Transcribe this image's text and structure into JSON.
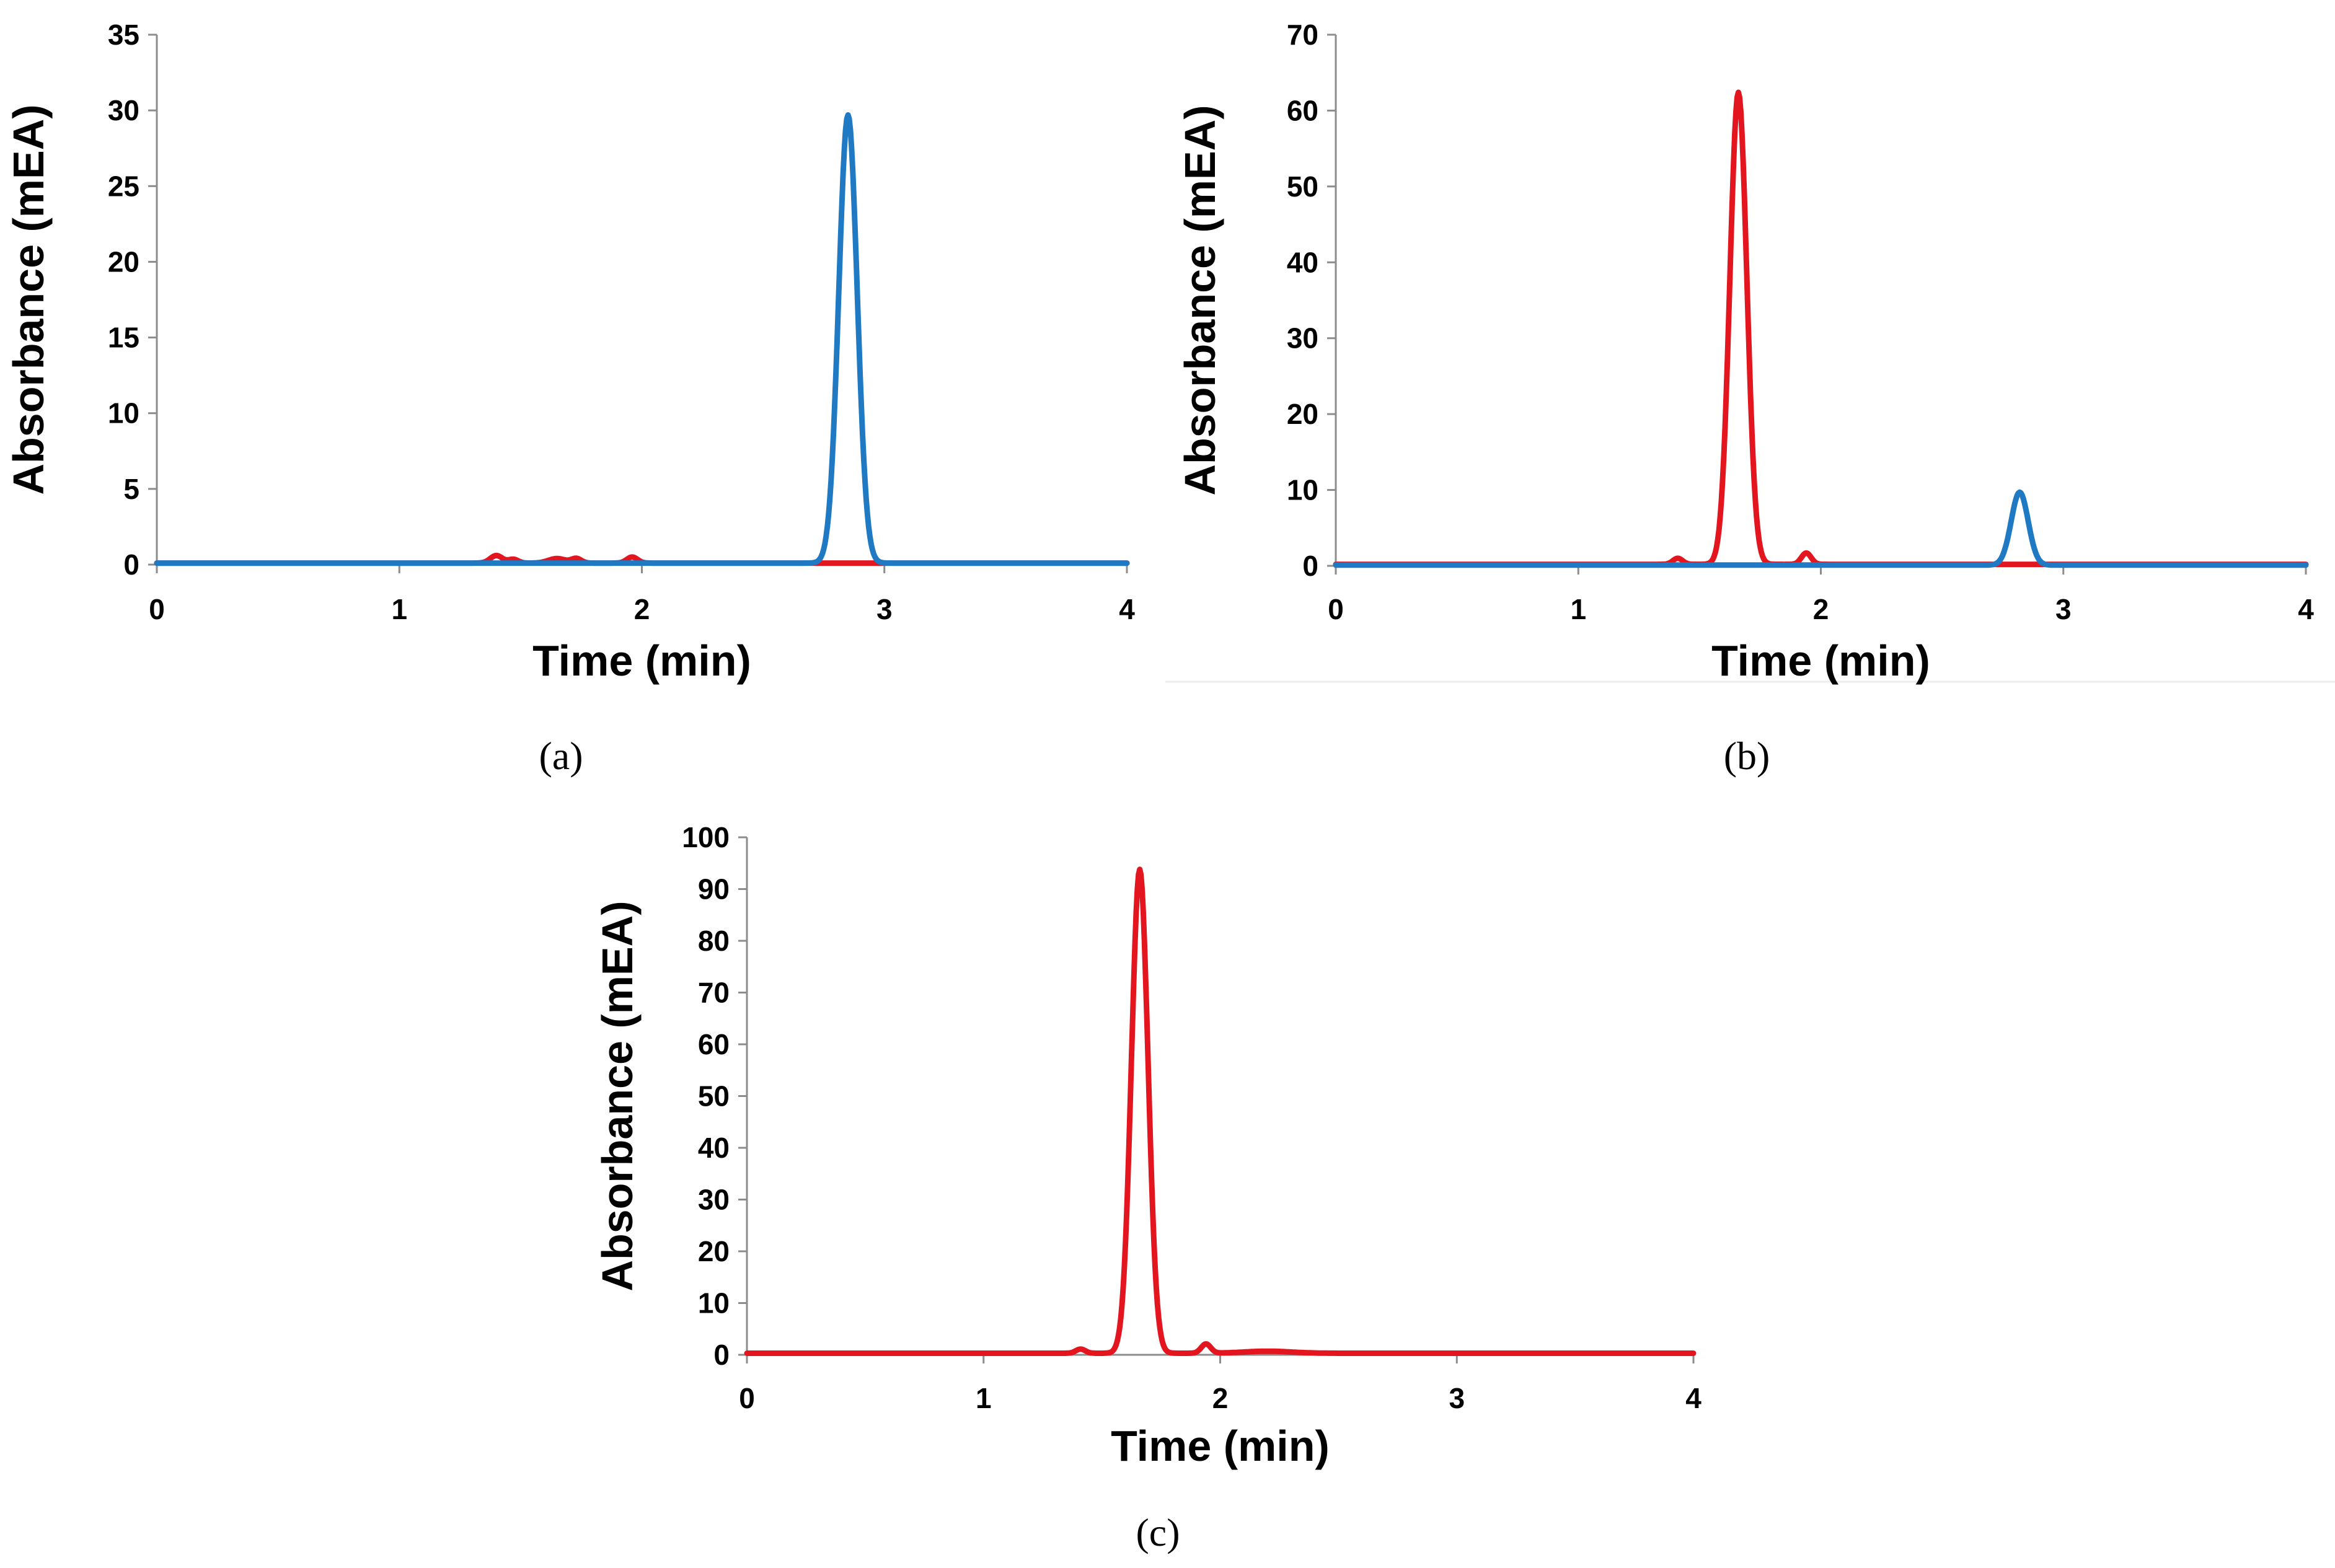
{
  "chart_data": [
    {
      "id": "a",
      "type": "line",
      "caption": "(a)",
      "xlabel": "Time (min)",
      "ylabel": "Absorbance (mEA)",
      "xlim": [
        0,
        4
      ],
      "ylim": [
        0,
        35
      ],
      "xticks": [
        "0",
        "1",
        "2",
        "3",
        "4"
      ],
      "yticks": [
        "0",
        "5",
        "10",
        "15",
        "20",
        "25",
        "30",
        "35"
      ],
      "series": [
        {
          "name": "red trace",
          "color": "#e3161f",
          "baseline": 0.1,
          "peaks": [
            {
              "t": 1.4,
              "h": 0.5,
              "w": 0.025
            },
            {
              "t": 1.47,
              "h": 0.25,
              "w": 0.02
            },
            {
              "t": 1.65,
              "h": 0.3,
              "w": 0.035
            },
            {
              "t": 1.73,
              "h": 0.3,
              "w": 0.02
            },
            {
              "t": 1.96,
              "h": 0.4,
              "w": 0.022
            }
          ]
        },
        {
          "name": "blue trace",
          "color": "#1f7ac3",
          "baseline": 0.1,
          "peaks": [
            {
              "t": 2.85,
              "h": 29.6,
              "w": 0.038
            }
          ]
        }
      ]
    },
    {
      "id": "b",
      "type": "line",
      "caption": "(b)",
      "xlabel": "Time (min)",
      "ylabel": "Absorbance (mEA)",
      "xlim": [
        0,
        4
      ],
      "ylim": [
        0,
        70
      ],
      "xticks": [
        "0",
        "1",
        "2",
        "3",
        "4"
      ],
      "yticks": [
        "0",
        "10",
        "20",
        "30",
        "40",
        "50",
        "60",
        "70"
      ],
      "series": [
        {
          "name": "red trace",
          "color": "#e3161f",
          "baseline": 0.2,
          "peaks": [
            {
              "t": 1.41,
              "h": 0.8,
              "w": 0.02
            },
            {
              "t": 1.66,
              "h": 62.2,
              "w": 0.035
            },
            {
              "t": 1.94,
              "h": 1.5,
              "w": 0.02
            }
          ]
        },
        {
          "name": "blue trace",
          "color": "#1f7ac3",
          "baseline": 0.1,
          "peaks": [
            {
              "t": 2.82,
              "h": 9.6,
              "w": 0.035
            }
          ]
        }
      ]
    },
    {
      "id": "c",
      "type": "line",
      "caption": "(c)",
      "xlabel": "Time (min)",
      "ylabel": "Absorbance (mEA)",
      "xlim": [
        0,
        4
      ],
      "ylim": [
        0,
        100
      ],
      "xticks": [
        "0",
        "1",
        "2",
        "3",
        "4"
      ],
      "yticks": [
        "0",
        "10",
        "20",
        "30",
        "40",
        "50",
        "60",
        "70",
        "80",
        "90",
        "100"
      ],
      "series": [
        {
          "name": "red trace",
          "color": "#e3161f",
          "baseline": 0.3,
          "peaks": [
            {
              "t": 1.41,
              "h": 0.8,
              "w": 0.02
            },
            {
              "t": 1.66,
              "h": 93.5,
              "w": 0.035
            },
            {
              "t": 1.94,
              "h": 1.8,
              "w": 0.02
            },
            {
              "t": 2.2,
              "h": 0.4,
              "w": 0.1
            }
          ]
        }
      ]
    }
  ]
}
